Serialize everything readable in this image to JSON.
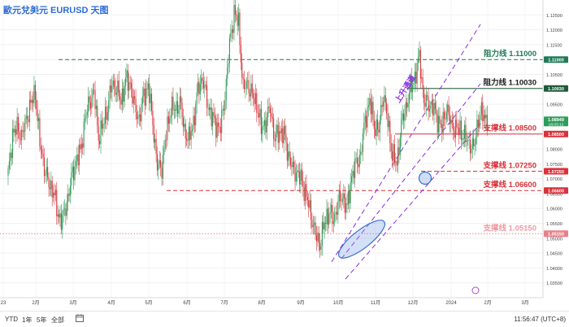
{
  "title": "歐元兌美元 EURUSD 天图",
  "chart_data": {
    "type": "candlestick",
    "ylim": [
      1.03,
      1.13
    ],
    "y_ticks": [
      1.035,
      1.04,
      1.045,
      1.05,
      1.055,
      1.06,
      1.065,
      1.07,
      1.075,
      1.08,
      1.085,
      1.09,
      1.095,
      1.1,
      1.105,
      1.11,
      1.115,
      1.12,
      1.125
    ],
    "x_ticks": [
      "23",
      "2月",
      "3月",
      "4月",
      "5月",
      "6月",
      "7月",
      "8月",
      "9月",
      "10月",
      "11月",
      "12月",
      "2024",
      "2月",
      "3月"
    ],
    "close_trend": [
      [
        0,
        1.071
      ],
      [
        4,
        1.085
      ],
      [
        8,
        1.087
      ],
      [
        12,
        1.084
      ],
      [
        16,
        1.09
      ],
      [
        20,
        1.095
      ],
      [
        24,
        1.099
      ],
      [
        28,
        1.082
      ],
      [
        32,
        1.074
      ],
      [
        36,
        1.068
      ],
      [
        40,
        1.066
      ],
      [
        44,
        1.058
      ],
      [
        48,
        1.056
      ],
      [
        52,
        1.062
      ],
      [
        56,
        1.07
      ],
      [
        60,
        1.076
      ],
      [
        64,
        1.079
      ],
      [
        68,
        1.09
      ],
      [
        72,
        1.096
      ],
      [
        76,
        1.099
      ],
      [
        80,
        1.084
      ],
      [
        84,
        1.088
      ],
      [
        88,
        1.094
      ],
      [
        92,
        1.102
      ],
      [
        96,
        1.1
      ],
      [
        100,
        1.096
      ],
      [
        104,
        1.103
      ],
      [
        108,
        1.102
      ],
      [
        112,
        1.094
      ],
      [
        116,
        1.09
      ],
      [
        120,
        1.098
      ],
      [
        124,
        1.101
      ],
      [
        128,
        1.089
      ],
      [
        132,
        1.074
      ],
      [
        136,
        1.074
      ],
      [
        140,
        1.085
      ],
      [
        144,
        1.094
      ],
      [
        148,
        1.093
      ],
      [
        152,
        1.096
      ],
      [
        156,
        1.086
      ],
      [
        160,
        1.083
      ],
      [
        164,
        1.089
      ],
      [
        168,
        1.1
      ],
      [
        172,
        1.104
      ],
      [
        176,
        1.096
      ],
      [
        180,
        1.091
      ],
      [
        184,
        1.088
      ],
      [
        188,
        1.087
      ],
      [
        192,
        1.098
      ],
      [
        196,
        1.115
      ],
      [
        200,
        1.126
      ],
      [
        204,
        1.122
      ],
      [
        208,
        1.1
      ],
      [
        212,
        1.102
      ],
      [
        216,
        1.098
      ],
      [
        220,
        1.095
      ],
      [
        224,
        1.087
      ],
      [
        228,
        1.089
      ],
      [
        232,
        1.094
      ],
      [
        236,
        1.083
      ],
      [
        240,
        1.086
      ],
      [
        244,
        1.085
      ],
      [
        248,
        1.078
      ],
      [
        252,
        1.073
      ],
      [
        256,
        1.072
      ],
      [
        260,
        1.069
      ],
      [
        264,
        1.064
      ],
      [
        268,
        1.058
      ],
      [
        272,
        1.051
      ],
      [
        276,
        1.048
      ],
      [
        280,
        1.055
      ],
      [
        284,
        1.059
      ],
      [
        288,
        1.056
      ],
      [
        292,
        1.062
      ],
      [
        296,
        1.064
      ],
      [
        300,
        1.06
      ],
      [
        304,
        1.071
      ],
      [
        308,
        1.075
      ],
      [
        312,
        1.078
      ],
      [
        316,
        1.09
      ],
      [
        320,
        1.096
      ],
      [
        324,
        1.088
      ],
      [
        328,
        1.086
      ],
      [
        332,
        1.099
      ],
      [
        336,
        1.089
      ],
      [
        340,
        1.078
      ],
      [
        344,
        1.075
      ],
      [
        348,
        1.088
      ],
      [
        352,
        1.094
      ],
      [
        356,
        1.1
      ],
      [
        360,
        1.104
      ],
      [
        364,
        1.111
      ],
      [
        368,
        1.096
      ],
      [
        372,
        1.095
      ],
      [
        376,
        1.094
      ],
      [
        380,
        1.09
      ],
      [
        384,
        1.087
      ],
      [
        388,
        1.094
      ],
      [
        392,
        1.088
      ],
      [
        396,
        1.087
      ],
      [
        400,
        1.086
      ],
      [
        404,
        1.084
      ],
      [
        408,
        1.082
      ],
      [
        412,
        1.08
      ],
      [
        416,
        1.09
      ],
      [
        420,
        1.092
      ],
      [
        424,
        1.0895
      ]
    ],
    "horizontal_levels": [
      {
        "label": "阻力线 1.11000",
        "tag": "1.11000",
        "value": 1.11,
        "color": "#1f7a57",
        "style": "dashed",
        "label_color": "#1f7a57"
      },
      {
        "label": "阻力线 1.10030",
        "tag": "1.10030",
        "value": 1.1003,
        "color": "#1f5a3a",
        "style": "solid",
        "label_color": "#1a1a1a"
      },
      {
        "label": "支撑线 1.08500",
        "tag": "1.08500",
        "value": 1.085,
        "color": "#d9323a",
        "style": "solid",
        "label_color": "#d9323a"
      },
      {
        "label": "支撑线 1.07250",
        "tag": "1.07250",
        "value": 1.0725,
        "color": "#d9323a",
        "style": "dashed",
        "label_color": "#d9323a"
      },
      {
        "label": "支撑线 1.06600",
        "tag": "1.06600",
        "value": 1.066,
        "color": "#d9323a",
        "style": "dashed",
        "label_color": "#d9323a"
      },
      {
        "label": "支撑线 1.05150",
        "tag": "1.05150",
        "value": 1.0515,
        "color": "#e8808a",
        "style": "dotted",
        "label_color": "#ef9aa3"
      }
    ],
    "current_price": {
      "value": 1.08949,
      "label": "1.08949",
      "countdown": "18:03:12"
    },
    "channel_label": "上升通道",
    "channel_color": "#8a2be2"
  },
  "bottom_bar": {
    "ranges": [
      "YTD",
      "1年",
      "5年",
      "全部"
    ],
    "clock": "11:56:47 (UTC+8)"
  }
}
